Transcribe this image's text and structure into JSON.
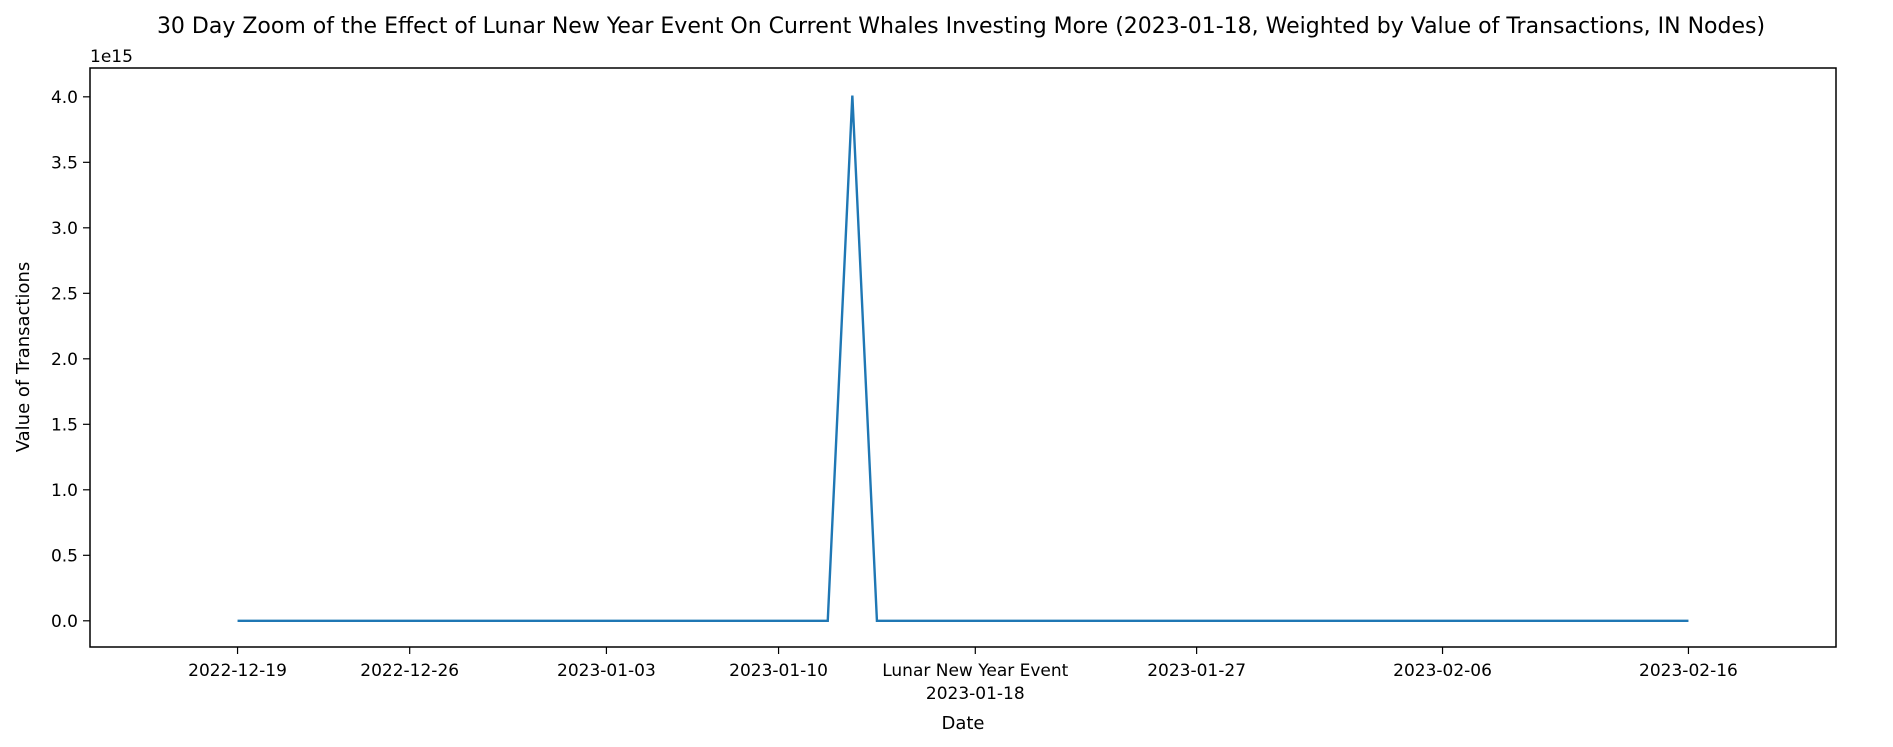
{
  "chart_data": {
    "type": "line",
    "title": "30 Day Zoom of the Effect of Lunar New Year Event On Current Whales Investing More (2023-01-18, Weighted by Value of Transactions, IN Nodes)",
    "xlabel": "Date",
    "ylabel": "Value of Transactions",
    "y_offset_label": "1e15",
    "y_scale_exponent": 15,
    "xlim": [
      "2022-12-13",
      "2023-02-22"
    ],
    "ylim": [
      -0.2,
      4.22
    ],
    "grid": false,
    "line_color": "#1f77b4",
    "x_ticks": [
      {
        "date": "2022-12-19",
        "label": "2022-12-19"
      },
      {
        "date": "2022-12-26",
        "label": "2022-12-26"
      },
      {
        "date": "2023-01-03",
        "label": "2023-01-03"
      },
      {
        "date": "2023-01-10",
        "label": "2023-01-10"
      },
      {
        "date": "2023-01-18",
        "label": "2023-01-18",
        "annotation": "Lunar New Year Event"
      },
      {
        "date": "2023-01-27",
        "label": "2023-01-27"
      },
      {
        "date": "2023-02-06",
        "label": "2023-02-06"
      },
      {
        "date": "2023-02-16",
        "label": "2023-02-16"
      }
    ],
    "y_ticks": [
      0.0,
      0.5,
      1.0,
      1.5,
      2.0,
      2.5,
      3.0,
      3.5,
      4.0
    ],
    "y_tick_labels": [
      "0.0",
      "0.5",
      "1.0",
      "1.5",
      "2.0",
      "2.5",
      "3.0",
      "3.5",
      "4.0"
    ],
    "series": [
      {
        "points": [
          {
            "x": "2022-12-19",
            "y": 0.0
          },
          {
            "x": "2023-01-12",
            "y": 0.0
          },
          {
            "x": "2023-01-13",
            "y": 4.01
          },
          {
            "x": "2023-01-14",
            "y": 0.0
          },
          {
            "x": "2023-02-16",
            "y": 0.0
          }
        ]
      }
    ]
  }
}
